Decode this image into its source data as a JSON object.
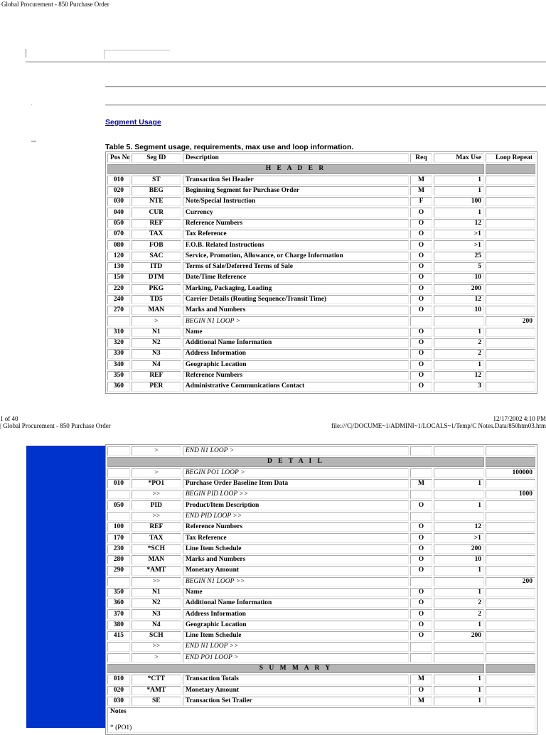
{
  "page_title": "Global Procurement - 850 Purchase Order",
  "segment_usage_link": "Segment Usage",
  "table_caption": "Table 5. Segment usage, requirements, max use and loop information.",
  "columns": [
    "Pos No.",
    "Seg ID",
    "Description",
    "Req",
    "Max Use",
    "Loop Repeat"
  ],
  "page1_rows": [
    {
      "type": "section",
      "label": "H E A D E R"
    },
    {
      "pos": "010",
      "seg": "ST",
      "desc": "Transaction Set Header",
      "req": "M",
      "max": "1",
      "loop": ""
    },
    {
      "pos": "020",
      "seg": "BEG",
      "desc": "Beginning Segment for Purchase Order",
      "req": "M",
      "max": "1",
      "loop": ""
    },
    {
      "pos": "030",
      "seg": "NTE",
      "desc": "Note/Special Instruction",
      "req": "F",
      "max": "100",
      "loop": ""
    },
    {
      "pos": "040",
      "seg": "CUR",
      "desc": "Currency",
      "req": "O",
      "max": "1",
      "loop": ""
    },
    {
      "pos": "050",
      "seg": "REF",
      "desc": "Reference Numbers",
      "req": "O",
      "max": "12",
      "loop": ""
    },
    {
      "pos": "070",
      "seg": "TAX",
      "desc": "Tax Reference",
      "req": "O",
      "max": ">1",
      "loop": ""
    },
    {
      "pos": "080",
      "seg": "FOB",
      "desc": "F.O.B. Related Instructions",
      "req": "O",
      "max": ">1",
      "loop": ""
    },
    {
      "pos": "120",
      "seg": "SAC",
      "desc": "Service, Promotion, Allowance, or Charge Information",
      "req": "O",
      "max": "25",
      "loop": ""
    },
    {
      "pos": "130",
      "seg": "ITD",
      "desc": "Terms of Sale/Deferred Terms of Sale",
      "req": "O",
      "max": "5",
      "loop": ""
    },
    {
      "pos": "150",
      "seg": "DTM",
      "desc": "Date/Time Reference",
      "req": "O",
      "max": "10",
      "loop": ""
    },
    {
      "pos": "220",
      "seg": "PKG",
      "desc": "Marking, Packaging, Loading",
      "req": "O",
      "max": "200",
      "loop": ""
    },
    {
      "pos": "240",
      "seg": "TD5",
      "desc": "Carrier Details (Routing Sequence/Transit Time)",
      "req": "O",
      "max": "12",
      "loop": ""
    },
    {
      "pos": "270",
      "seg": "MAN",
      "desc": "Marks and Numbers",
      "req": "O",
      "max": "10",
      "loop": ""
    },
    {
      "type": "loop",
      "pos": "",
      "seg": ">",
      "desc": "BEGIN N1 LOOP >",
      "req": "",
      "max": "",
      "loop": "200"
    },
    {
      "pos": "310",
      "seg": "N1",
      "desc": "Name",
      "req": "O",
      "max": "1",
      "loop": ""
    },
    {
      "pos": "320",
      "seg": "N2",
      "desc": "Additional Name Information",
      "req": "O",
      "max": "2",
      "loop": ""
    },
    {
      "pos": "330",
      "seg": "N3",
      "desc": "Address Information",
      "req": "O",
      "max": "2",
      "loop": ""
    },
    {
      "pos": "340",
      "seg": "N4",
      "desc": "Geographic Location",
      "req": "O",
      "max": "1",
      "loop": ""
    },
    {
      "pos": "350",
      "seg": "REF",
      "desc": "Reference Numbers",
      "req": "O",
      "max": "12",
      "loop": ""
    },
    {
      "pos": "360",
      "seg": "PER",
      "desc": "Administrative Communications Contact",
      "req": "O",
      "max": "3",
      "loop": ""
    }
  ],
  "footer": {
    "page_count": "1 of 40",
    "datetime": "12/17/2002 4:10 PM",
    "next_title": "Global Procurement - 850 Purchase Order",
    "file_path": "file:///C|/DOCUME~1/ADMINI~1/LOCALS~1/Temp/C Notes.Data/850htm03.htm"
  },
  "page2_rows": [
    {
      "type": "loop",
      "pos": "",
      "seg": ">",
      "desc": "END N1 LOOP >",
      "req": "",
      "max": "",
      "loop": ""
    },
    {
      "type": "section",
      "label": "D E T A I L"
    },
    {
      "type": "loop",
      "pos": "",
      "seg": ">",
      "desc": "BEGIN PO1 LOOP >",
      "req": "",
      "max": "",
      "loop": "100000"
    },
    {
      "pos": "010",
      "seg": "*PO1",
      "desc": "Purchase Order Baseline Item Data",
      "req": "M",
      "max": "1",
      "loop": ""
    },
    {
      "type": "loop",
      "pos": "",
      "seg": ">>",
      "desc": "BEGIN PID LOOP >>",
      "req": "",
      "max": "",
      "loop": "1000"
    },
    {
      "pos": "050",
      "seg": "PID",
      "desc": "Product/Item Description",
      "req": "O",
      "max": "1",
      "loop": ""
    },
    {
      "type": "loop",
      "pos": "",
      "seg": ">>",
      "desc": "END PID LOOP >>",
      "req": "",
      "max": "",
      "loop": ""
    },
    {
      "pos": "100",
      "seg": "REF",
      "desc": "Reference Numbers",
      "req": "O",
      "max": "12",
      "loop": ""
    },
    {
      "pos": "170",
      "seg": "TAX",
      "desc": "Tax Reference",
      "req": "O",
      "max": ">1",
      "loop": ""
    },
    {
      "pos": "230",
      "seg": "*SCH",
      "desc": "Line Item Schedule",
      "req": "O",
      "max": "200",
      "loop": ""
    },
    {
      "pos": "280",
      "seg": "MAN",
      "desc": "Marks and Numbers",
      "req": "O",
      "max": "10",
      "loop": ""
    },
    {
      "pos": "290",
      "seg": "*AMT",
      "desc": "Monetary Amount",
      "req": "O",
      "max": "1",
      "loop": ""
    },
    {
      "type": "loop",
      "pos": "",
      "seg": ">>",
      "desc": "BEGIN N1 LOOP >>",
      "req": "",
      "max": "",
      "loop": "200"
    },
    {
      "pos": "350",
      "seg": "N1",
      "desc": "Name",
      "req": "O",
      "max": "1",
      "loop": ""
    },
    {
      "pos": "360",
      "seg": "N2",
      "desc": "Additional Name Information",
      "req": "O",
      "max": "2",
      "loop": ""
    },
    {
      "pos": "370",
      "seg": "N3",
      "desc": "Address Information",
      "req": "O",
      "max": "2",
      "loop": ""
    },
    {
      "pos": "380",
      "seg": "N4",
      "desc": "Geographic Location",
      "req": "O",
      "max": "1",
      "loop": ""
    },
    {
      "pos": "415",
      "seg": "SCH",
      "desc": "Line Item Schedule",
      "req": "O",
      "max": "200",
      "loop": ""
    },
    {
      "type": "loop",
      "pos": "",
      "seg": ">>",
      "desc": "END N1 LOOP >>",
      "req": "",
      "max": "",
      "loop": ""
    },
    {
      "type": "loop",
      "pos": "",
      "seg": ">",
      "desc": "END PO1 LOOP >",
      "req": "",
      "max": "",
      "loop": ""
    },
    {
      "type": "section",
      "label": "S U M M A R Y"
    },
    {
      "pos": "010",
      "seg": "*CTT",
      "desc": "Transaction Totals",
      "req": "M",
      "max": "1",
      "loop": ""
    },
    {
      "pos": "020",
      "seg": "*AMT",
      "desc": "Monetary Amount",
      "req": "O",
      "max": "1",
      "loop": ""
    },
    {
      "pos": "030",
      "seg": "SE",
      "desc": "Transaction Set Trailer",
      "req": "M",
      "max": "1",
      "loop": ""
    }
  ],
  "notes": {
    "label": "Notes",
    "first_note": "* (PO1)"
  }
}
